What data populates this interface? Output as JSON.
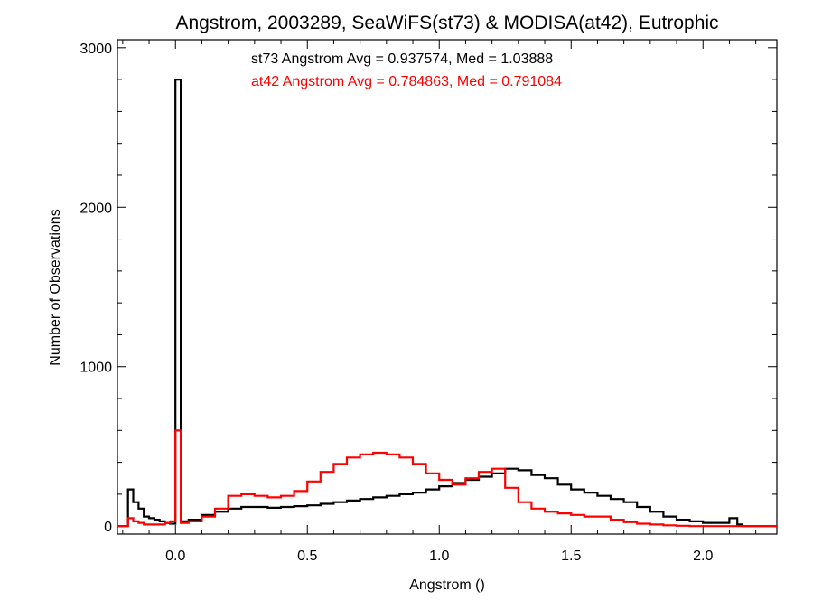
{
  "chart_data": {
    "type": "line",
    "title": "Angstrom, 2003289, SeaWiFS(st73) & MODISA(at42), Eutrophic",
    "xlabel": "Angstrom ()",
    "ylabel": "Number of Observations",
    "xlim": [
      -0.22,
      2.28
    ],
    "ylim": [
      -50,
      3050
    ],
    "xticks": [
      0.0,
      0.5,
      1.0,
      1.5,
      2.0
    ],
    "xtick_labels": [
      "0.0",
      "0.5",
      "1.0",
      "1.5",
      "2.0"
    ],
    "yticks": [
      0,
      1000,
      2000,
      3000
    ],
    "ytick_labels": [
      "0",
      "1000",
      "2000",
      "3000"
    ],
    "annotations": [
      {
        "text": "st73 Angstrom Avg = 0.937574, Med = 1.03888",
        "color": "#000000"
      },
      {
        "text": "at42 Angstrom Avg = 0.784863, Med = 0.791084",
        "color": "#ff0000"
      }
    ],
    "series": [
      {
        "name": "st73",
        "color": "#000000",
        "x": [
          -0.22,
          -0.2,
          -0.18,
          -0.16,
          -0.14,
          -0.12,
          -0.1,
          -0.08,
          -0.06,
          -0.04,
          -0.02,
          0.0,
          0.02,
          0.05,
          0.1,
          0.15,
          0.2,
          0.25,
          0.3,
          0.35,
          0.4,
          0.45,
          0.5,
          0.55,
          0.6,
          0.65,
          0.7,
          0.75,
          0.8,
          0.85,
          0.9,
          0.95,
          1.0,
          1.05,
          1.1,
          1.15,
          1.2,
          1.25,
          1.3,
          1.35,
          1.4,
          1.45,
          1.5,
          1.55,
          1.6,
          1.65,
          1.7,
          1.75,
          1.8,
          1.85,
          1.9,
          1.95,
          2.0,
          2.05,
          2.1,
          2.13,
          2.15,
          2.2,
          2.28
        ],
        "y": [
          0,
          0,
          230,
          150,
          110,
          60,
          50,
          40,
          30,
          20,
          15,
          2800,
          30,
          40,
          70,
          90,
          110,
          120,
          120,
          115,
          120,
          125,
          130,
          140,
          150,
          160,
          170,
          180,
          190,
          200,
          210,
          230,
          250,
          270,
          290,
          310,
          330,
          360,
          350,
          320,
          300,
          260,
          230,
          210,
          190,
          170,
          150,
          120,
          90,
          60,
          40,
          30,
          20,
          20,
          50,
          10,
          0,
          0,
          0
        ]
      },
      {
        "name": "at42",
        "color": "#ff0000",
        "x": [
          -0.22,
          -0.2,
          -0.18,
          -0.16,
          -0.14,
          -0.12,
          -0.1,
          -0.08,
          -0.06,
          -0.04,
          -0.02,
          0.0,
          0.02,
          0.05,
          0.1,
          0.15,
          0.2,
          0.25,
          0.3,
          0.35,
          0.4,
          0.45,
          0.5,
          0.55,
          0.6,
          0.65,
          0.7,
          0.75,
          0.8,
          0.85,
          0.9,
          0.95,
          1.0,
          1.05,
          1.1,
          1.15,
          1.2,
          1.25,
          1.3,
          1.35,
          1.4,
          1.45,
          1.5,
          1.55,
          1.6,
          1.65,
          1.7,
          1.75,
          1.8,
          1.85,
          1.9,
          1.95,
          2.0,
          2.05,
          2.1,
          2.13,
          2.15,
          2.2,
          2.28
        ],
        "y": [
          0,
          0,
          50,
          30,
          20,
          10,
          10,
          10,
          10,
          20,
          30,
          600,
          20,
          30,
          60,
          110,
          190,
          200,
          190,
          180,
          190,
          220,
          280,
          340,
          390,
          430,
          450,
          460,
          450,
          430,
          390,
          330,
          290,
          260,
          300,
          340,
          360,
          240,
          150,
          110,
          90,
          80,
          70,
          60,
          60,
          40,
          25,
          15,
          10,
          5,
          2,
          0,
          0,
          0,
          0,
          0,
          0,
          0,
          0
        ]
      }
    ]
  }
}
